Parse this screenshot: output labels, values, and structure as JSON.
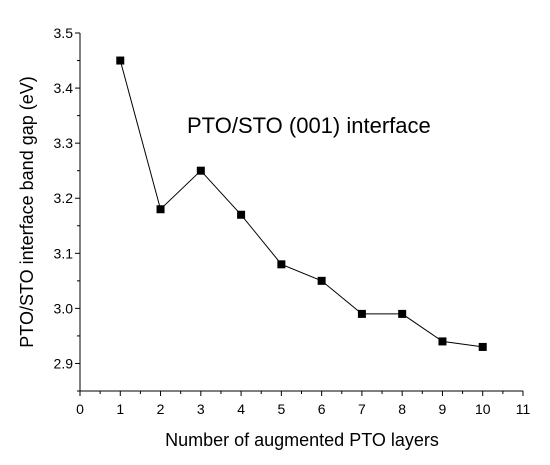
{
  "chart_data": {
    "type": "line",
    "title": "",
    "annotation": "PTO/STO (001) interface",
    "xlabel": "Number of augmented PTO layers",
    "ylabel": "PTO/STO interface band gap (eV)",
    "xlim": [
      0,
      11
    ],
    "ylim": [
      2.85,
      3.5
    ],
    "x_ticks": [
      0,
      1,
      2,
      3,
      4,
      5,
      6,
      7,
      8,
      9,
      10,
      11
    ],
    "y_ticks": [
      "2.9",
      "3.0",
      "3.1",
      "3.2",
      "3.3",
      "3.4",
      "3.5"
    ],
    "grid": false,
    "legend": "none",
    "marker": "filled-square",
    "colors": {
      "line": "#000000",
      "marker": "#000000"
    },
    "series": [
      {
        "x": [
          1,
          2,
          3,
          4,
          5,
          6,
          7,
          8,
          9,
          10
        ],
        "y": [
          3.45,
          3.18,
          3.25,
          3.17,
          3.08,
          3.05,
          2.99,
          2.99,
          2.94,
          2.93
        ]
      }
    ]
  }
}
